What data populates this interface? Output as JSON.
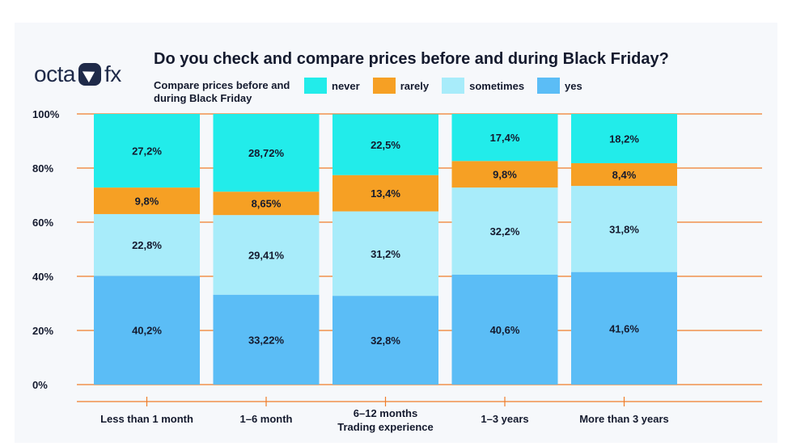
{
  "logo": {
    "left": "octa",
    "right": "fx"
  },
  "chart_data": {
    "type": "bar",
    "stacked": true,
    "title": "Do you check and compare prices before and during Black Friday?",
    "legend_title": "Compare prices before and during Black Friday",
    "xlabel": "Trading experience",
    "ylabel": "",
    "ylim": [
      0,
      100
    ],
    "y_ticks": [
      "0%",
      "20%",
      "40%",
      "60%",
      "80%",
      "100%"
    ],
    "grid": true,
    "legend_position": "top",
    "categories": [
      "Less than 1 month",
      "1–6 month",
      "6–12 months",
      "1–3 years",
      "More than 3 years"
    ],
    "series": [
      {
        "name": "yes",
        "color": "#5bbdf6",
        "values": [
          40.2,
          33.22,
          32.8,
          40.6,
          41.6
        ],
        "labels": [
          "40,2%",
          "33,22%",
          "32,8%",
          "40,6%",
          "41,6%"
        ]
      },
      {
        "name": "sometimes",
        "color": "#a8ecfa",
        "values": [
          22.8,
          29.41,
          31.2,
          32.2,
          31.8
        ],
        "labels": [
          "22,8%",
          "29,41%",
          "31,2%",
          "32,2%",
          "31,8%"
        ]
      },
      {
        "name": "rarely",
        "color": "#f6a024",
        "values": [
          9.8,
          8.65,
          13.4,
          9.8,
          8.4
        ],
        "labels": [
          "9,8%",
          "8,65%",
          "13,4%",
          "9,8%",
          "8,4%"
        ]
      },
      {
        "name": "never",
        "color": "#22ecea",
        "values": [
          27.2,
          28.72,
          22.5,
          17.4,
          18.2
        ],
        "labels": [
          "27,2%",
          "28,72%",
          "22,5%",
          "17,4%",
          "18,2%"
        ]
      }
    ],
    "legend_order": [
      "never",
      "rarely",
      "sometimes",
      "yes"
    ]
  },
  "colors": {
    "grid": "#f07d2a",
    "text": "#141a2e"
  }
}
